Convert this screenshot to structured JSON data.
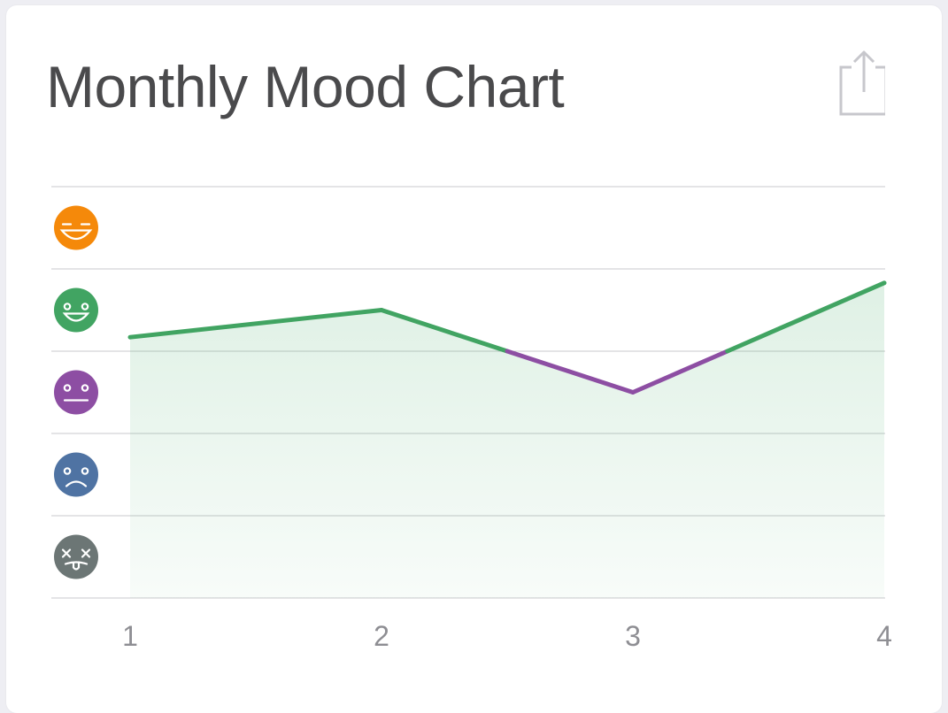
{
  "card": {
    "title": "Monthly Mood Chart"
  },
  "toolbar": {
    "share_icon": "share-icon"
  },
  "colors": {
    "background": "#eeeef3",
    "card": "#ffffff",
    "title": "#4a4a4c",
    "grid": "#c8c8cc",
    "axis_text": "#8e8e93",
    "share_icon": "#c7c7cc"
  },
  "chart_data": {
    "type": "line",
    "title": "Monthly Mood Chart",
    "xlabel": "",
    "ylabel": "",
    "x": [
      1,
      2,
      3,
      4
    ],
    "xticks": [
      "1",
      "2",
      "3",
      "4"
    ],
    "xlim": [
      1,
      4
    ],
    "ylim": [
      1,
      5
    ],
    "y": [
      3.67,
      4.0,
      3.0,
      4.33
    ],
    "grid": true,
    "area_fill": true,
    "area_color": "#4caf6e",
    "mood_levels": [
      {
        "level": 5,
        "name": "rad",
        "icon": "rad-face-icon",
        "color": "#f5890a"
      },
      {
        "level": 4,
        "name": "good",
        "icon": "good-face-icon",
        "color": "#41a462"
      },
      {
        "level": 3,
        "name": "meh",
        "icon": "meh-face-icon",
        "color": "#8d4ea3"
      },
      {
        "level": 2,
        "name": "bad",
        "icon": "bad-face-icon",
        "color": "#4f73a3"
      },
      {
        "level": 1,
        "name": "awful",
        "icon": "awful-face-icon",
        "color": "#6c7675"
      }
    ]
  }
}
